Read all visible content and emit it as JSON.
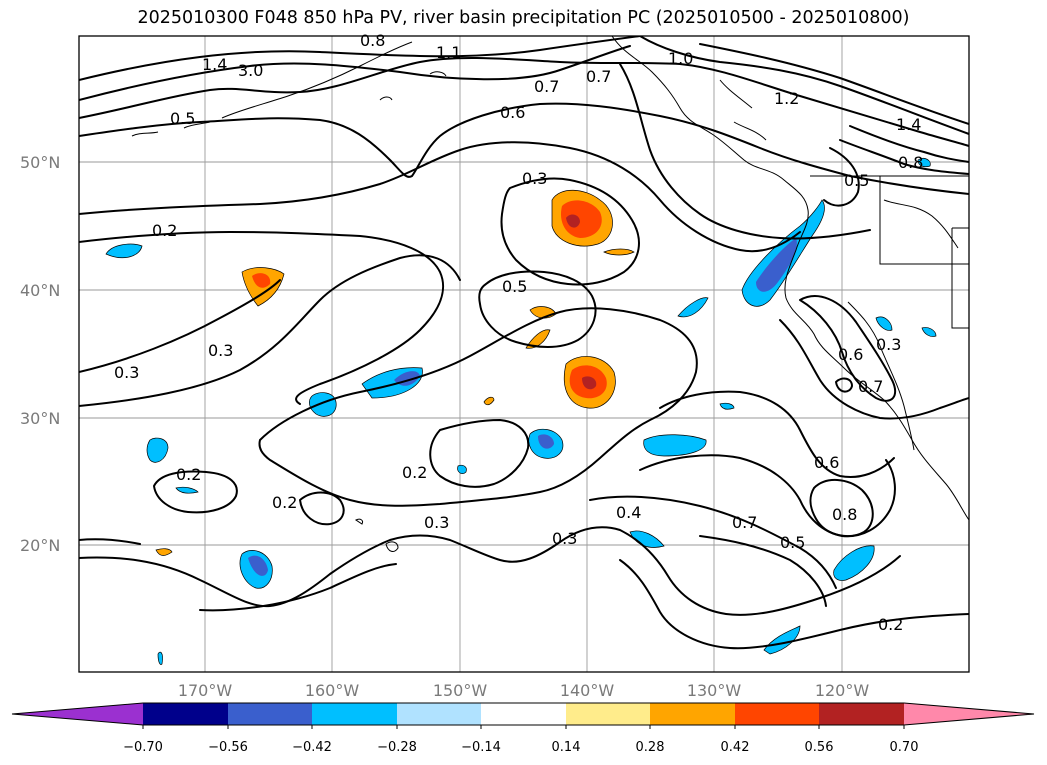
{
  "title": "2025010300 F048 850 hPa PV, river basin precipitation PC (2025010500 - 2025010800)",
  "lat_ticks": [
    "50°N",
    "40°N",
    "30°N",
    "20°N"
  ],
  "lon_ticks": [
    "170°W",
    "160°W",
    "150°W",
    "140°W",
    "130°W",
    "120°W"
  ],
  "colorbar": {
    "ticks": [
      "−0.70",
      "−0.56",
      "−0.42",
      "−0.28",
      "−0.14",
      "0.14",
      "0.28",
      "0.42",
      "0.56",
      "0.70"
    ],
    "colors": [
      "#9b30d0",
      "#00008b",
      "#3a5fcd",
      "#00bfff",
      "#b0e2ff",
      "#ffffff",
      "#ffec8b",
      "#ffa500",
      "#ff4500",
      "#b22222",
      "#ff88aa"
    ]
  },
  "contour_labels": [
    "1.4",
    "3.0",
    "0.8",
    "1.1",
    "1.0",
    "0.7",
    "0.7",
    "1.2",
    "1.4",
    "0.8",
    "0.5",
    "0.6",
    "0.3",
    "0.5",
    "0.2",
    "0.3",
    "0.3",
    "0.5",
    "0.6",
    "0.7",
    "0.3",
    "0.2",
    "0.2",
    "0.2",
    "0.3",
    "0.3",
    "0.4",
    "0.6",
    "0.7",
    "0.8",
    "0.5",
    "0.2"
  ]
}
